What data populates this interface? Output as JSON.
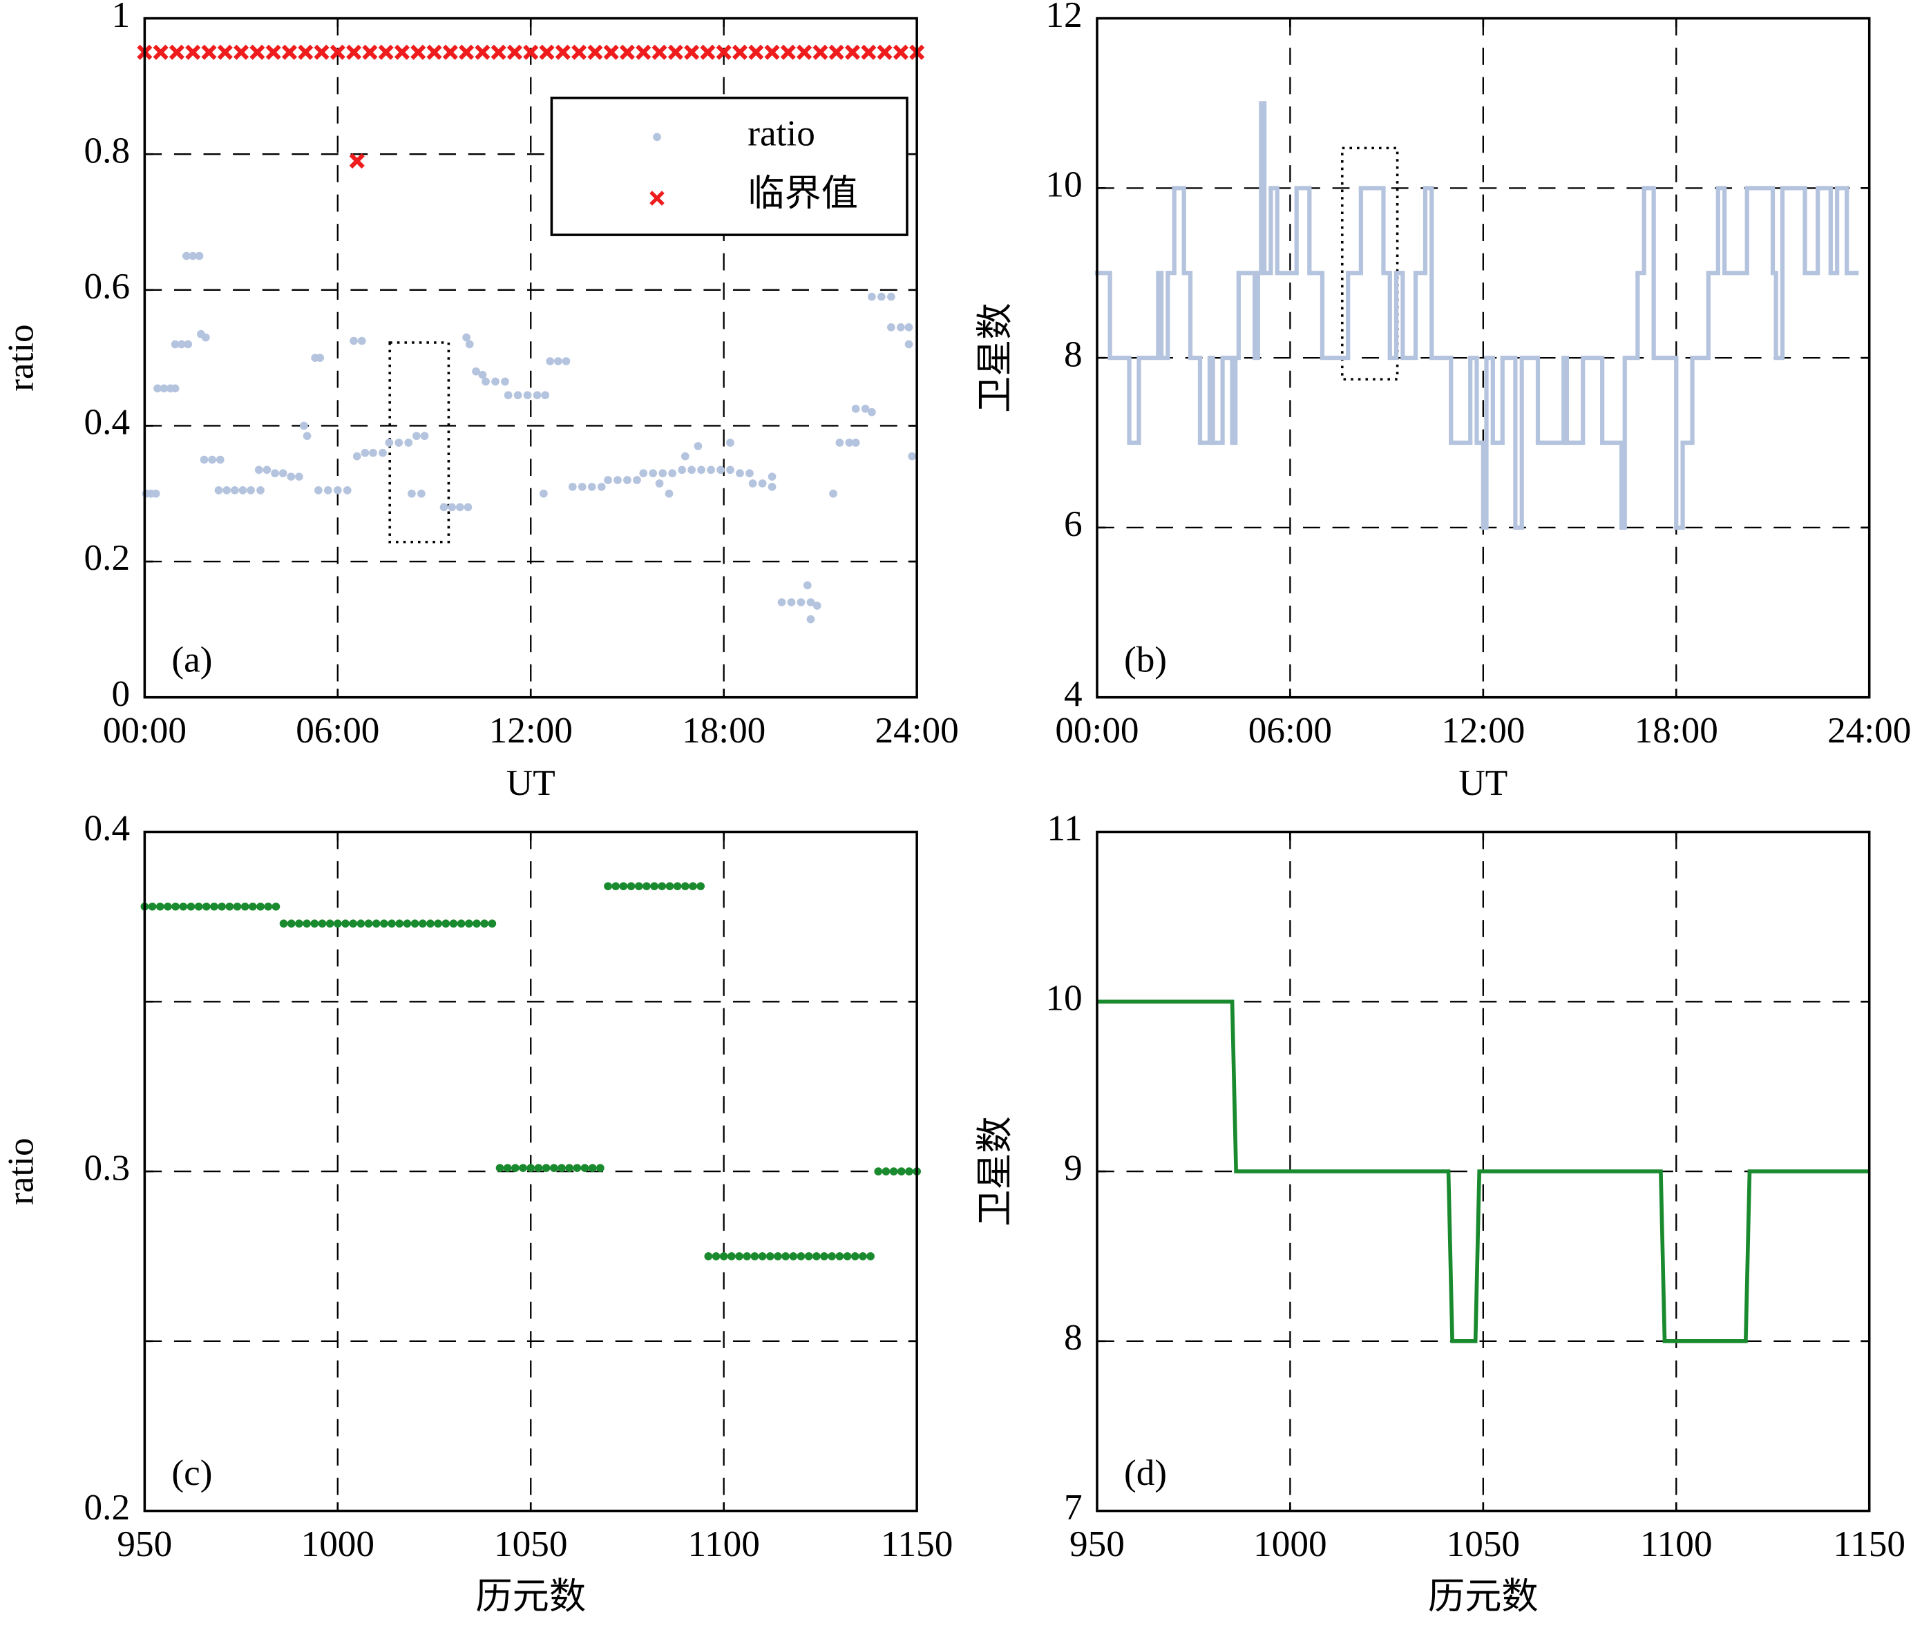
{
  "chart_data": [
    {
      "type": "scatter",
      "xlabel": "UT",
      "ylabel": "ratio",
      "annotation": "(a)",
      "xlim": [
        0,
        24
      ],
      "ylim": [
        0,
        1
      ],
      "grid": true,
      "legend": "upper right",
      "xticks": [
        {
          "value": 0,
          "label": "00:00"
        },
        {
          "value": 6,
          "label": "06:00"
        },
        {
          "value": 12,
          "label": "12:00"
        },
        {
          "value": 18,
          "label": "18:00"
        },
        {
          "value": 24,
          "label": "24:00"
        }
      ],
      "yticks": [
        0,
        0.2,
        0.4,
        0.6,
        0.8,
        1
      ],
      "series": [
        {
          "name": "ratio",
          "color": "#b4c3de",
          "marker": "dot",
          "x": [
            0.05,
            0.2,
            0.35,
            0.4,
            0.6,
            0.8,
            0.95,
            0.95,
            1.15,
            1.35,
            1.3,
            1.5,
            1.7,
            1.75,
            1.9,
            1.85,
            2.1,
            2.35,
            2.3,
            2.55,
            2.8,
            3.05,
            3.3,
            3.6,
            3.55,
            3.8,
            4.05,
            4.3,
            4.55,
            4.8,
            4.95,
            5.05,
            5.3,
            5.45,
            5.4,
            5.7,
            6.0,
            6.3,
            6.5,
            6.75,
            6.6,
            6.85,
            7.1,
            7.4,
            7.6,
            7.9,
            8.2,
            8.45,
            8.7,
            8.3,
            8.6,
            9.3,
            9.55,
            9.8,
            10.05,
            10.0,
            10.1,
            10.3,
            10.5,
            10.6,
            10.9,
            11.2,
            11.3,
            11.6,
            11.9,
            12.2,
            12.45,
            12.6,
            12.85,
            13.1,
            12.4,
            13.3,
            13.6,
            13.9,
            14.2,
            14.4,
            14.7,
            15.0,
            15.3,
            15.5,
            15.8,
            16.1,
            16.4,
            16.7,
            17.0,
            17.3,
            17.6,
            17.9,
            18.2,
            16.0,
            16.3,
            16.8,
            17.2,
            18.2,
            18.5,
            18.8,
            18.9,
            19.2,
            19.5,
            19.5,
            19.8,
            20.1,
            20.4,
            20.7,
            20.6,
            20.9,
            20.7,
            21.4,
            21.6,
            21.9,
            22.1,
            22.1,
            22.4,
            22.6,
            22.6,
            22.9,
            23.2,
            23.2,
            23.5,
            23.75,
            23.75,
            23.85
          ],
          "values": [
            0.3,
            0.3,
            0.3,
            0.455,
            0.455,
            0.455,
            0.455,
            0.52,
            0.52,
            0.52,
            0.65,
            0.65,
            0.65,
            0.535,
            0.53,
            0.35,
            0.35,
            0.35,
            0.305,
            0.305,
            0.305,
            0.305,
            0.305,
            0.305,
            0.335,
            0.335,
            0.33,
            0.33,
            0.325,
            0.325,
            0.4,
            0.385,
            0.5,
            0.5,
            0.305,
            0.305,
            0.305,
            0.305,
            0.525,
            0.525,
            0.355,
            0.36,
            0.36,
            0.36,
            0.375,
            0.375,
            0.375,
            0.385,
            0.385,
            0.3,
            0.3,
            0.28,
            0.28,
            0.28,
            0.28,
            0.53,
            0.52,
            0.48,
            0.475,
            0.465,
            0.465,
            0.465,
            0.445,
            0.445,
            0.445,
            0.445,
            0.445,
            0.495,
            0.495,
            0.495,
            0.3,
            0.31,
            0.31,
            0.31,
            0.31,
            0.32,
            0.32,
            0.32,
            0.32,
            0.33,
            0.33,
            0.33,
            0.33,
            0.335,
            0.335,
            0.335,
            0.335,
            0.335,
            0.335,
            0.315,
            0.3,
            0.355,
            0.37,
            0.375,
            0.33,
            0.33,
            0.315,
            0.315,
            0.31,
            0.325,
            0.14,
            0.14,
            0.14,
            0.14,
            0.165,
            0.135,
            0.115,
            0.3,
            0.375,
            0.375,
            0.375,
            0.425,
            0.425,
            0.42,
            0.59,
            0.59,
            0.59,
            0.545,
            0.545,
            0.545,
            0.52,
            0.355
          ]
        },
        {
          "name": "临界值",
          "color": "#ee1c1c",
          "marker": "x",
          "x": [
            0,
            0.5,
            1,
            1.5,
            2,
            2.5,
            3,
            3.5,
            4,
            4.5,
            5,
            5.5,
            6,
            6.5,
            7,
            7.5,
            8,
            8.5,
            9,
            9.5,
            10,
            10.5,
            11,
            11.5,
            12,
            12.5,
            13,
            13.5,
            14,
            14.5,
            15,
            15.5,
            16,
            16.5,
            17,
            17.5,
            18,
            18.5,
            19,
            19.5,
            20,
            20.5,
            21,
            21.5,
            22,
            22.5,
            23,
            23.5,
            24,
            6.6
          ],
          "values": [
            0.95,
            0.95,
            0.95,
            0.95,
            0.95,
            0.95,
            0.95,
            0.95,
            0.95,
            0.95,
            0.95,
            0.95,
            0.95,
            0.95,
            0.95,
            0.95,
            0.95,
            0.95,
            0.95,
            0.95,
            0.95,
            0.95,
            0.95,
            0.95,
            0.95,
            0.95,
            0.95,
            0.95,
            0.95,
            0.95,
            0.95,
            0.95,
            0.95,
            0.95,
            0.95,
            0.95,
            0.95,
            0.95,
            0.95,
            0.95,
            0.95,
            0.95,
            0.95,
            0.95,
            0.95,
            0.95,
            0.95,
            0.95,
            0.95,
            0.79
          ]
        }
      ]
    },
    {
      "type": "step",
      "xlabel": "UT",
      "ylabel": "卫星数",
      "annotation": "(b)",
      "xlim": [
        0,
        24
      ],
      "ylim": [
        4,
        12
      ],
      "grid": true,
      "xticks": [
        {
          "value": 0,
          "label": "00:00"
        },
        {
          "value": 6,
          "label": "06:00"
        },
        {
          "value": 12,
          "label": "12:00"
        },
        {
          "value": 18,
          "label": "18:00"
        },
        {
          "value": 24,
          "label": "24:00"
        }
      ],
      "yticks": [
        4,
        6,
        8,
        10,
        12
      ],
      "series": [
        {
          "color": "#b4c3de",
          "x": [
            0,
            0.4,
            1.0,
            1.3,
            1.9,
            2.0,
            2.2,
            2.4,
            2.7,
            2.9,
            3.2,
            3.5,
            3.6,
            3.9,
            4.2,
            4.3,
            4.4,
            4.9,
            5.0,
            5.1,
            5.2,
            5.4,
            5.6,
            6.2,
            6.6,
            7.0,
            7.8,
            8.2,
            8.9,
            9.1,
            9.3,
            9.5,
            9.9,
            10.2,
            10.4,
            11.0,
            11.6,
            11.8,
            12.0,
            12.1,
            12.3,
            12.6,
            13.0,
            13.2,
            13.7,
            14.5,
            14.6,
            15.1,
            15.7,
            16.3,
            16.4,
            16.8,
            17.0,
            17.3,
            18.0,
            18.2,
            18.5,
            19.0,
            19.3,
            19.5,
            20.2,
            21.0,
            21.1,
            21.3,
            22.0,
            22.4,
            22.8,
            23.0,
            23.3,
            23.6
          ],
          "values": [
            9,
            8,
            7,
            8,
            9,
            8,
            9,
            10,
            9,
            8,
            7,
            8,
            7,
            8,
            7,
            8,
            9,
            8,
            9,
            11,
            9,
            10,
            9,
            10,
            9,
            8,
            9,
            10,
            9,
            8,
            9,
            8,
            9,
            10,
            8,
            7,
            8,
            7,
            6,
            8,
            7,
            8,
            6,
            8,
            7,
            8,
            7,
            8,
            7,
            6,
            8,
            9,
            10,
            8,
            6,
            7,
            8,
            9,
            10,
            9,
            10,
            9,
            8,
            10,
            9,
            10,
            9,
            10,
            9,
            9
          ]
        }
      ]
    },
    {
      "type": "scatter",
      "xlabel": "历元数",
      "ylabel": "ratio",
      "annotation": "(c)",
      "xlim": [
        950,
        1150
      ],
      "ylim": [
        0.2,
        0.4
      ],
      "grid": true,
      "xticks": [
        950,
        1000,
        1050,
        1100,
        1150
      ],
      "yticks": [
        0.2,
        {
          "value": 0.25,
          "label": null
        },
        0.3,
        {
          "value": 0.35,
          "label": null
        },
        0.4
      ],
      "series": [
        {
          "color": "#1a8a2e",
          "marker": "dot",
          "x": [
            950,
            952,
            954,
            956,
            958,
            960,
            962,
            964,
            966,
            968,
            970,
            972,
            974,
            976,
            978,
            980,
            982,
            984,
            986,
            988,
            990,
            992,
            994,
            996,
            998,
            1000,
            1002,
            1004,
            1006,
            1008,
            1010,
            1012,
            1014,
            1016,
            1018,
            1020,
            1022,
            1024,
            1026,
            1028,
            1030,
            1032,
            1034,
            1036,
            1038,
            1040,
            1042,
            1044,
            1046,
            1048,
            1050,
            1052,
            1054,
            1056,
            1058,
            1060,
            1062,
            1064,
            1066,
            1068,
            1070,
            1072,
            1074,
            1076,
            1078,
            1080,
            1082,
            1084,
            1086,
            1088,
            1090,
            1092,
            1094,
            1096,
            1098,
            1100,
            1102,
            1104,
            1106,
            1108,
            1110,
            1112,
            1114,
            1116,
            1118,
            1120,
            1122,
            1124,
            1126,
            1128,
            1130,
            1132,
            1134,
            1136,
            1138,
            1140,
            1142,
            1144,
            1146,
            1148,
            1150
          ],
          "values": [
            0.378,
            0.378,
            0.378,
            0.378,
            0.378,
            0.378,
            0.378,
            0.378,
            0.378,
            0.378,
            0.378,
            0.378,
            0.378,
            0.378,
            0.378,
            0.378,
            0.378,
            0.378,
            0.373,
            0.373,
            0.373,
            0.373,
            0.373,
            0.373,
            0.373,
            0.373,
            0.373,
            0.373,
            0.373,
            0.373,
            0.373,
            0.373,
            0.373,
            0.373,
            0.373,
            0.373,
            0.373,
            0.373,
            0.373,
            0.373,
            0.373,
            0.373,
            0.373,
            0.373,
            0.373,
            0.373,
            0.301,
            0.301,
            0.301,
            0.301,
            0.301,
            0.301,
            0.301,
            0.301,
            0.301,
            0.301,
            0.301,
            0.301,
            0.301,
            0.301,
            0.384,
            0.384,
            0.384,
            0.384,
            0.384,
            0.384,
            0.384,
            0.384,
            0.384,
            0.384,
            0.384,
            0.384,
            0.384,
            0.275,
            0.275,
            0.275,
            0.275,
            0.275,
            0.275,
            0.275,
            0.275,
            0.275,
            0.275,
            0.275,
            0.275,
            0.275,
            0.275,
            0.275,
            0.275,
            0.275,
            0.275,
            0.275,
            0.275,
            0.275,
            0.275,
            0.3,
            0.3,
            0.3,
            0.3,
            0.3,
            0.3
          ]
        }
      ]
    },
    {
      "type": "line",
      "xlabel": "历元数",
      "ylabel": "卫星数",
      "annotation": "(d)",
      "xlim": [
        950,
        1150
      ],
      "ylim": [
        7,
        11
      ],
      "grid": true,
      "xticks": [
        950,
        1000,
        1050,
        1100,
        1150
      ],
      "yticks": [
        7,
        8,
        9,
        10,
        11
      ],
      "series": [
        {
          "color": "#1a8a2e",
          "x": [
            950,
            985,
            986,
            1041,
            1042,
            1048,
            1049,
            1096,
            1097,
            1118,
            1119,
            1150
          ],
          "values": [
            10,
            10,
            9,
            9,
            8,
            8,
            9,
            9,
            8,
            8,
            9,
            9
          ]
        }
      ]
    }
  ]
}
